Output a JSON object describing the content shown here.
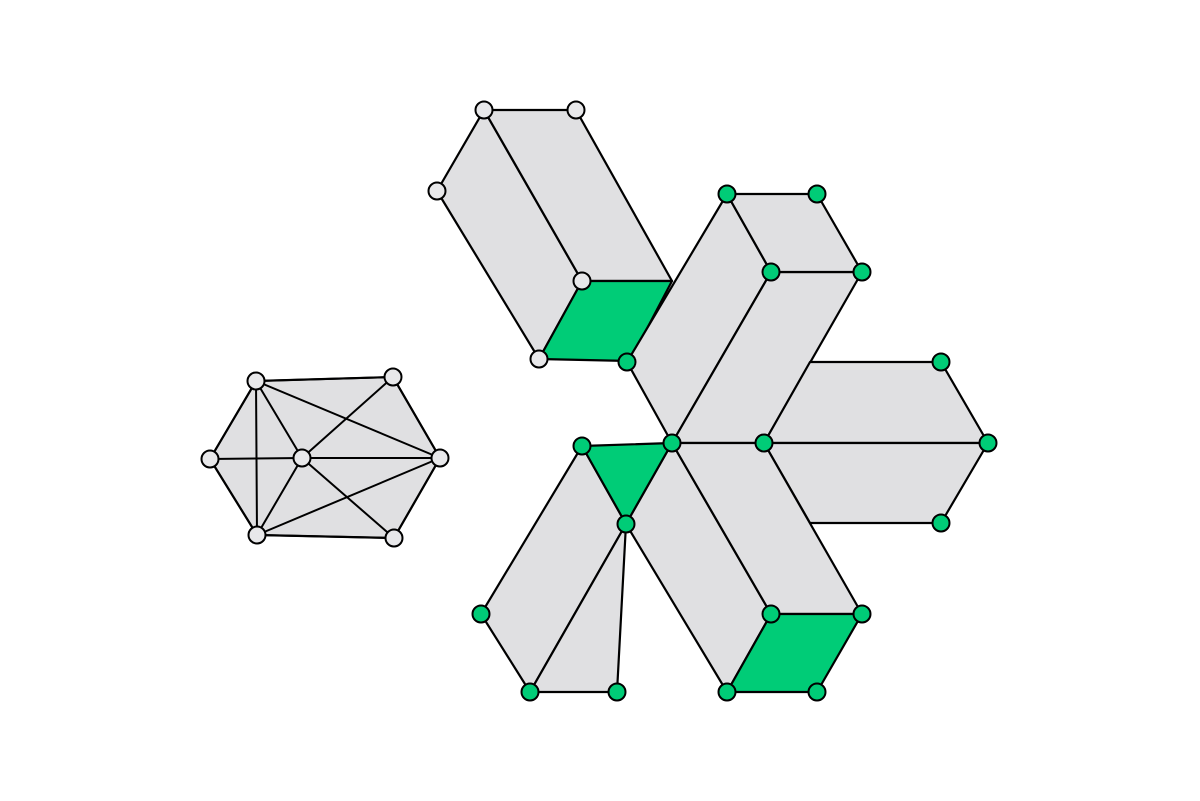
{
  "colors": {
    "background": "#ffffff",
    "face": "#e0e0e2",
    "highlight": "#00cc77",
    "vertex_plain": "#e8e8ea",
    "vertex_marked": "#00cc77",
    "stroke": "#000000"
  },
  "figures": [
    {
      "name": "small-hexagon-graph",
      "vertex_count": 7,
      "edge_count": 15
    },
    {
      "name": "box-upper-left",
      "vertex_count": 5,
      "highlighted_faces": 1
    },
    {
      "name": "box-top",
      "vertex_count": 5
    },
    {
      "name": "box-right",
      "vertex_count": 4
    },
    {
      "name": "box-lower-right",
      "vertex_count": 4,
      "highlighted_faces": 1
    },
    {
      "name": "box-lower-left",
      "vertex_count": 5,
      "highlighted_faces": 1
    }
  ]
}
